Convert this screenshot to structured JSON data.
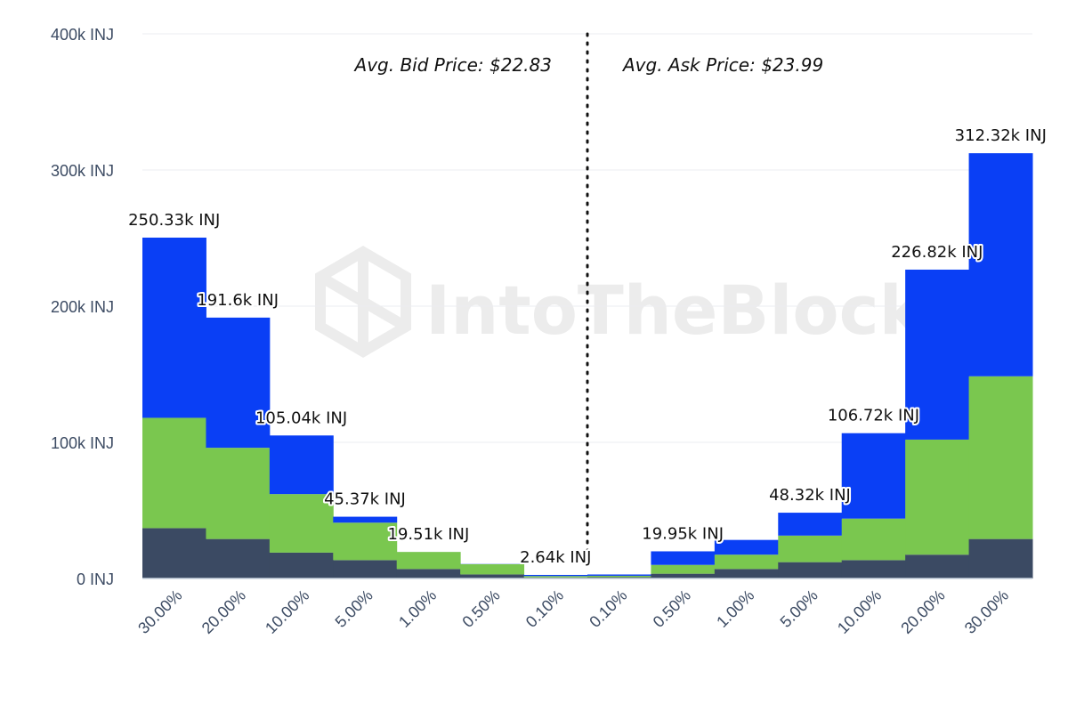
{
  "chart_data": {
    "type": "bar",
    "stacked": true,
    "categories": [
      "30.00%",
      "20.00%",
      "10.00%",
      "5.00%",
      "1.00%",
      "0.50%",
      "0.10%",
      "0.10%",
      "0.50%",
      "1.00%",
      "5.00%",
      "10.00%",
      "20.00%",
      "30.00%"
    ],
    "series": [
      {
        "color": "#3b4a63",
        "values": [
          37000,
          29000,
          19000,
          13500,
          7000,
          3000,
          800,
          1000,
          3500,
          7000,
          12000,
          13500,
          17500,
          29000
        ]
      },
      {
        "color": "#7ac74f",
        "values": [
          81000,
          67000,
          43000,
          27500,
          12500,
          7500,
          1000,
          1000,
          6500,
          10500,
          19500,
          30500,
          84500,
          119500
        ]
      },
      {
        "color": "#0a3ff5",
        "values": [
          132330,
          95600,
          43040,
          4370,
          10,
          140,
          840,
          950,
          9950,
          10820,
          16820,
          62720,
          124820,
          163820
        ]
      }
    ],
    "totals_labels": [
      "250.33k INJ",
      "191.6k INJ",
      "105.04k INJ",
      "45.37k INJ",
      "19.51k INJ",
      "",
      "2.64k INJ",
      "",
      "19.95k INJ",
      "",
      "48.32k INJ",
      "106.72k INJ",
      "226.82k INJ",
      "312.32k INJ"
    ],
    "ylim": [
      0,
      400000
    ],
    "yticks": [
      0,
      100000,
      200000,
      300000,
      400000
    ],
    "ytick_labels": [
      "0 INJ",
      "100k INJ",
      "200k INJ",
      "300k INJ",
      "400k INJ"
    ],
    "annotations": {
      "bid": "Avg. Bid Price: $22.83",
      "ask": "Avg. Ask Price: $23.99"
    },
    "grid": true,
    "divider": "dotted vertical line between bid and ask sides"
  },
  "watermark": {
    "text": "IntoTheBlock"
  }
}
